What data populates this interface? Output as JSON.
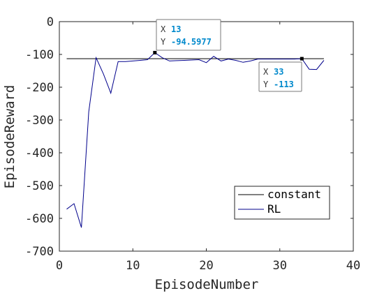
{
  "chart_data": {
    "type": "line",
    "title": "",
    "xlabel": "EpisodeNumber",
    "ylabel": "EpisodeReward",
    "xlim": [
      0,
      40
    ],
    "ylim": [
      -700,
      0
    ],
    "xticks": [
      "0",
      "10",
      "20",
      "30",
      "40"
    ],
    "yticks": [
      "0",
      "-100",
      "-200",
      "-300",
      "-400",
      "-500",
      "-600",
      "-700"
    ],
    "grid": false,
    "legend_position": "bottom-right",
    "series": [
      {
        "name": "constant",
        "color": "#000000",
        "x": [
          1,
          36
        ],
        "y": [
          -113,
          -113
        ]
      },
      {
        "name": "RL",
        "color": "#00008b",
        "x": [
          1,
          2,
          3,
          4,
          5,
          6,
          7,
          8,
          9,
          10,
          11,
          12,
          13,
          14,
          15,
          16,
          17,
          18,
          19,
          20,
          21,
          22,
          23,
          24,
          25,
          26,
          27,
          28,
          29,
          30,
          31,
          32,
          33,
          34,
          35,
          36
        ],
        "y": [
          -572,
          -555,
          -628,
          -275,
          -110,
          -160,
          -218,
          -122,
          -122,
          -120,
          -118,
          -116,
          -94.5977,
          -110,
          -120,
          -119,
          -118,
          -117,
          -116,
          -125,
          -106,
          -120,
          -114,
          -118,
          -124,
          -120,
          -114,
          -114,
          -114,
          -114,
          -114,
          -114,
          -113,
          -145,
          -146,
          -118
        ]
      }
    ],
    "datatips": [
      {
        "x_key": "X",
        "x": "13",
        "y_key": "Y",
        "y": "-94.5977",
        "color": "#0089cc"
      },
      {
        "x_key": "X",
        "x": "33",
        "y_key": "Y",
        "y": "-113",
        "color": "#0089cc"
      }
    ]
  }
}
